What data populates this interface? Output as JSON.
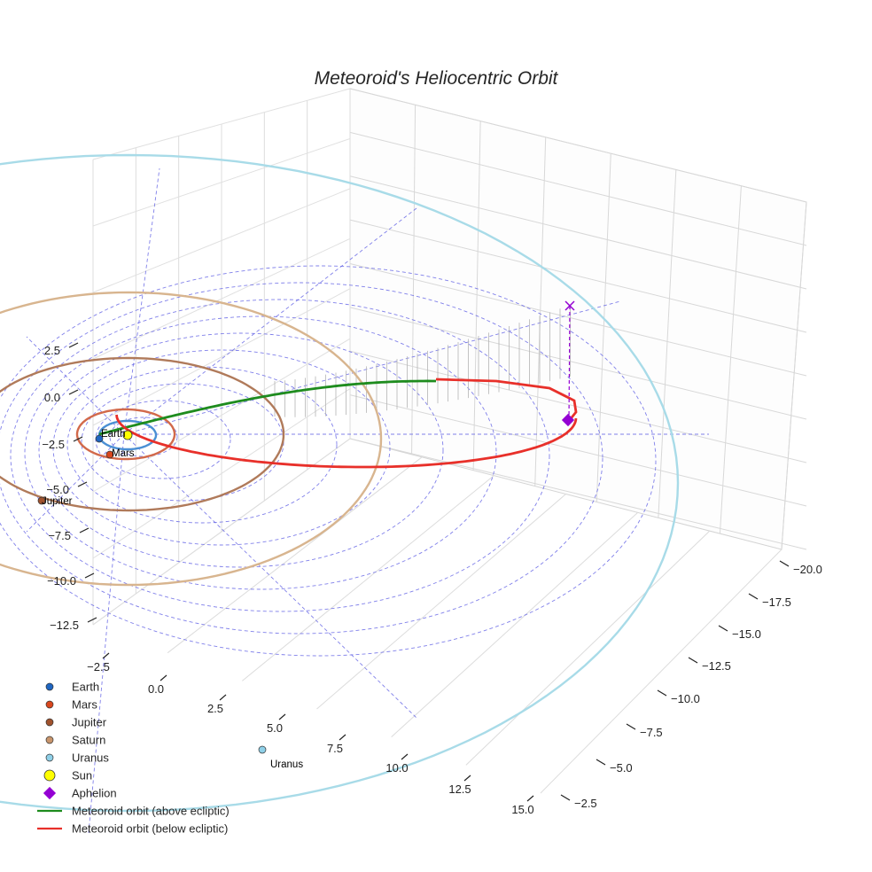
{
  "chart_data": {
    "type": "scatter",
    "title": "Meteoroid's Heliocentric Orbit",
    "projection": "3d",
    "grid": true,
    "legend_placement": "lower-left",
    "axes": {
      "x": {
        "ticks": [
          "−2.5",
          "0.0",
          "2.5",
          "5.0",
          "7.5",
          "10.0",
          "12.5",
          "15.0"
        ],
        "range": [
          -3,
          16
        ]
      },
      "y": {
        "ticks": [
          "−20.0",
          "−17.5",
          "−15.0",
          "−12.5",
          "−10.0",
          "−7.5",
          "−5.0",
          "−2.5"
        ],
        "range": [
          -21,
          -1.5
        ]
      },
      "z": {
        "ticks": [
          "2.5",
          "0.0",
          "−2.5",
          "−5.0",
          "−7.5",
          "−10.0",
          "−12.5"
        ],
        "range": [
          -13.5,
          4
        ]
      }
    },
    "planets": [
      {
        "name": "Earth",
        "color": "#1f66c2",
        "orbit_color": "#4a8fd4",
        "label": "Earth"
      },
      {
        "name": "Mars",
        "color": "#d9471e",
        "orbit_color": "#d2694a",
        "label": "Mars"
      },
      {
        "name": "Jupiter",
        "color": "#a0522d",
        "orbit_color": "#b07a5a",
        "label": "Jupiter"
      },
      {
        "name": "Saturn",
        "color": "#c8956c",
        "orbit_color": "#d8b58f",
        "label": ""
      },
      {
        "name": "Uranus",
        "color": "#8fd0e8",
        "orbit_color": "#a8dbe8",
        "label": "Uranus"
      }
    ],
    "sun": {
      "name": "Sun",
      "color": "#ffff00"
    },
    "aphelion": {
      "name": "Aphelion",
      "color": "#9400d3"
    },
    "meteoroid": {
      "above_label": "Meteoroid orbit (above ecliptic)",
      "below_label": "Meteoroid orbit (below ecliptic)",
      "above_color": "#1e8c1e",
      "below_color": "#e8302a"
    },
    "grid_color": "#6a6ae6",
    "legend": [
      {
        "label": "Earth",
        "marker": "circle",
        "color": "#1f66c2"
      },
      {
        "label": "Mars",
        "marker": "circle",
        "color": "#d9471e"
      },
      {
        "label": "Jupiter",
        "marker": "circle",
        "color": "#a0522d"
      },
      {
        "label": "Saturn",
        "marker": "circle",
        "color": "#c8956c"
      },
      {
        "label": "Uranus",
        "marker": "circle",
        "color": "#8fd0e8"
      },
      {
        "label": "Sun",
        "marker": "bigcircle",
        "color": "#ffff00"
      },
      {
        "label": "Aphelion",
        "marker": "diamond",
        "color": "#9400d3"
      },
      {
        "label": "Meteoroid orbit (above ecliptic)",
        "marker": "line",
        "color": "#1e8c1e"
      },
      {
        "label": "Meteoroid orbit (below ecliptic)",
        "marker": "line",
        "color": "#e8302a"
      }
    ]
  }
}
